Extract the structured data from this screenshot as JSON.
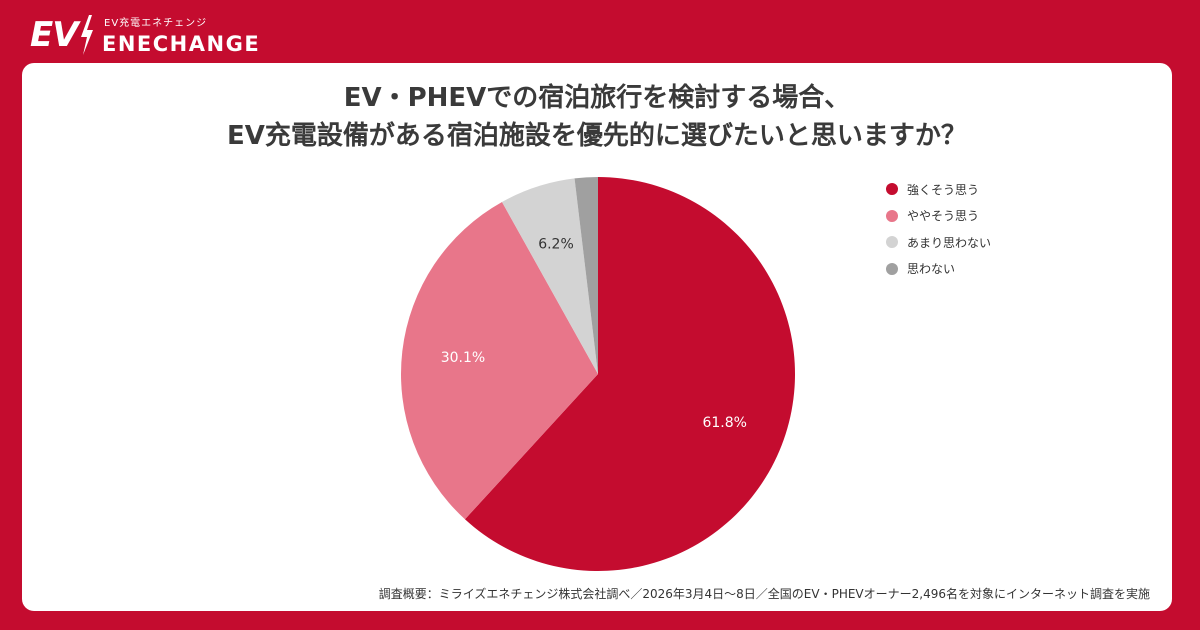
{
  "brand": {
    "logo_mark": "EV",
    "tagline": "EV充電エネチェンジ",
    "name": "ENECHANGE",
    "colors": {
      "background": "#c40c2f",
      "text": "#ffffff"
    }
  },
  "card": {
    "background": "#ffffff"
  },
  "chart_data": {
    "type": "pie",
    "title_lines": [
      "EV・PHEVでの宿泊旅行を検討する場合、",
      "EV充電設備がある宿泊施設を優先的に選びたいと思いますか？"
    ],
    "slices": [
      {
        "label": "強くそう思う",
        "value": 61.8,
        "value_label": "61.8%",
        "color": "#c40c2f"
      },
      {
        "label": "ややそう思う",
        "value": 30.1,
        "value_label": "30.1%",
        "color": "#e8768a"
      },
      {
        "label": "あまり思わない",
        "value": 6.2,
        "value_label": "6.2%",
        "color": "#d3d3d3"
      },
      {
        "label": "思わない",
        "value": 1.9,
        "value_label": "",
        "color": "#a0a0a0"
      }
    ],
    "start_angle_deg": 0,
    "direction": "clockwise",
    "legend_position": "top-right",
    "label_colors": [
      "#ffffff",
      "#ffffff",
      "#333333",
      "#333333"
    ]
  },
  "footer": {
    "source": "調査概要：ミライズエネチェンジ株式会社調べ／2026年3月4日〜8日／全国のEV・PHEVオーナー2,496名を対象にインターネット調査を実施"
  }
}
